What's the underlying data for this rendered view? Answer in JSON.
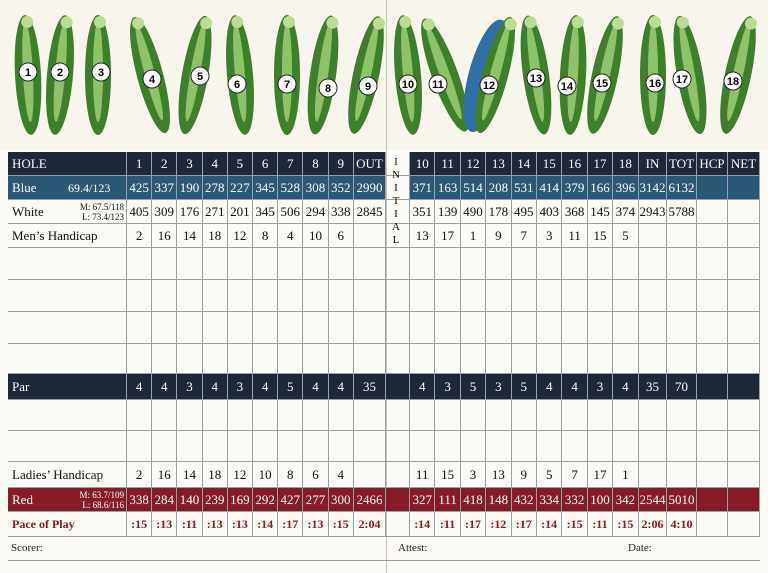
{
  "holes": [
    "1",
    "2",
    "3",
    "4",
    "5",
    "6",
    "7",
    "8",
    "9",
    "10",
    "11",
    "12",
    "13",
    "14",
    "15",
    "16",
    "17",
    "18"
  ],
  "header": {
    "label": "HOLE",
    "front": [
      1,
      2,
      3,
      4,
      5,
      6,
      7,
      8,
      9
    ],
    "out": "OUT",
    "initial": "INITIAL",
    "back": [
      10,
      11,
      12,
      13,
      14,
      15,
      16,
      17,
      18
    ],
    "in": "IN",
    "tot": "TOT",
    "hcp": "HCP",
    "net": "NET"
  },
  "rows": [
    {
      "label": "Blue",
      "rating": "69.4/123",
      "front": [
        425,
        337,
        190,
        278,
        227,
        345,
        528,
        308,
        352
      ],
      "out": 2990,
      "back": [
        371,
        163,
        514,
        208,
        531,
        414,
        379,
        166,
        396
      ],
      "in": 3142,
      "tot": 6132
    },
    {
      "label": "White",
      "rating": [
        "M: 67.5/118",
        "L: 73.4/123"
      ],
      "front": [
        405,
        309,
        176,
        271,
        201,
        345,
        506,
        294,
        338
      ],
      "out": 2845,
      "back": [
        351,
        139,
        490,
        178,
        495,
        403,
        368,
        145,
        374
      ],
      "in": 2943,
      "tot": 5788
    },
    {
      "label": "Men’s Handicap",
      "front": [
        2,
        16,
        14,
        18,
        12,
        8,
        4,
        10,
        6
      ],
      "back": [
        13,
        17,
        1,
        9,
        7,
        3,
        11,
        15,
        5
      ]
    },
    {
      "label": "Par",
      "front": [
        4,
        4,
        3,
        4,
        3,
        4,
        5,
        4,
        4
      ],
      "out": 35,
      "back": [
        4,
        3,
        5,
        3,
        5,
        4,
        4,
        3,
        4
      ],
      "in": 35,
      "tot": 70
    },
    {
      "label": "Ladies’ Handicap",
      "front": [
        2,
        16,
        14,
        18,
        12,
        10,
        8,
        6,
        4
      ],
      "back": [
        11,
        15,
        3,
        13,
        9,
        5,
        7,
        17,
        1
      ]
    },
    {
      "label": "Red",
      "rating": [
        "M: 63.7/109",
        "L: 68.6/116"
      ],
      "front": [
        338,
        284,
        140,
        239,
        169,
        292,
        427,
        277,
        300
      ],
      "out": 2466,
      "back": [
        327,
        111,
        418,
        148,
        432,
        334,
        332,
        100,
        342
      ],
      "in": 2544,
      "tot": 5010
    },
    {
      "label": "Pace of Play",
      "front": [
        ":15",
        ":13",
        ":11",
        ":13",
        ":13",
        ":14",
        ":17",
        ":13",
        ":15"
      ],
      "out": "2:04",
      "back": [
        ":14",
        ":11",
        ":17",
        ":12",
        ":17",
        ":14",
        ":15",
        ":11",
        ":15"
      ],
      "in": "2:06",
      "tot": "4:10"
    }
  ],
  "footer": {
    "scorer": "Scorer:",
    "attest": "Attest:",
    "date": "Date:"
  }
}
